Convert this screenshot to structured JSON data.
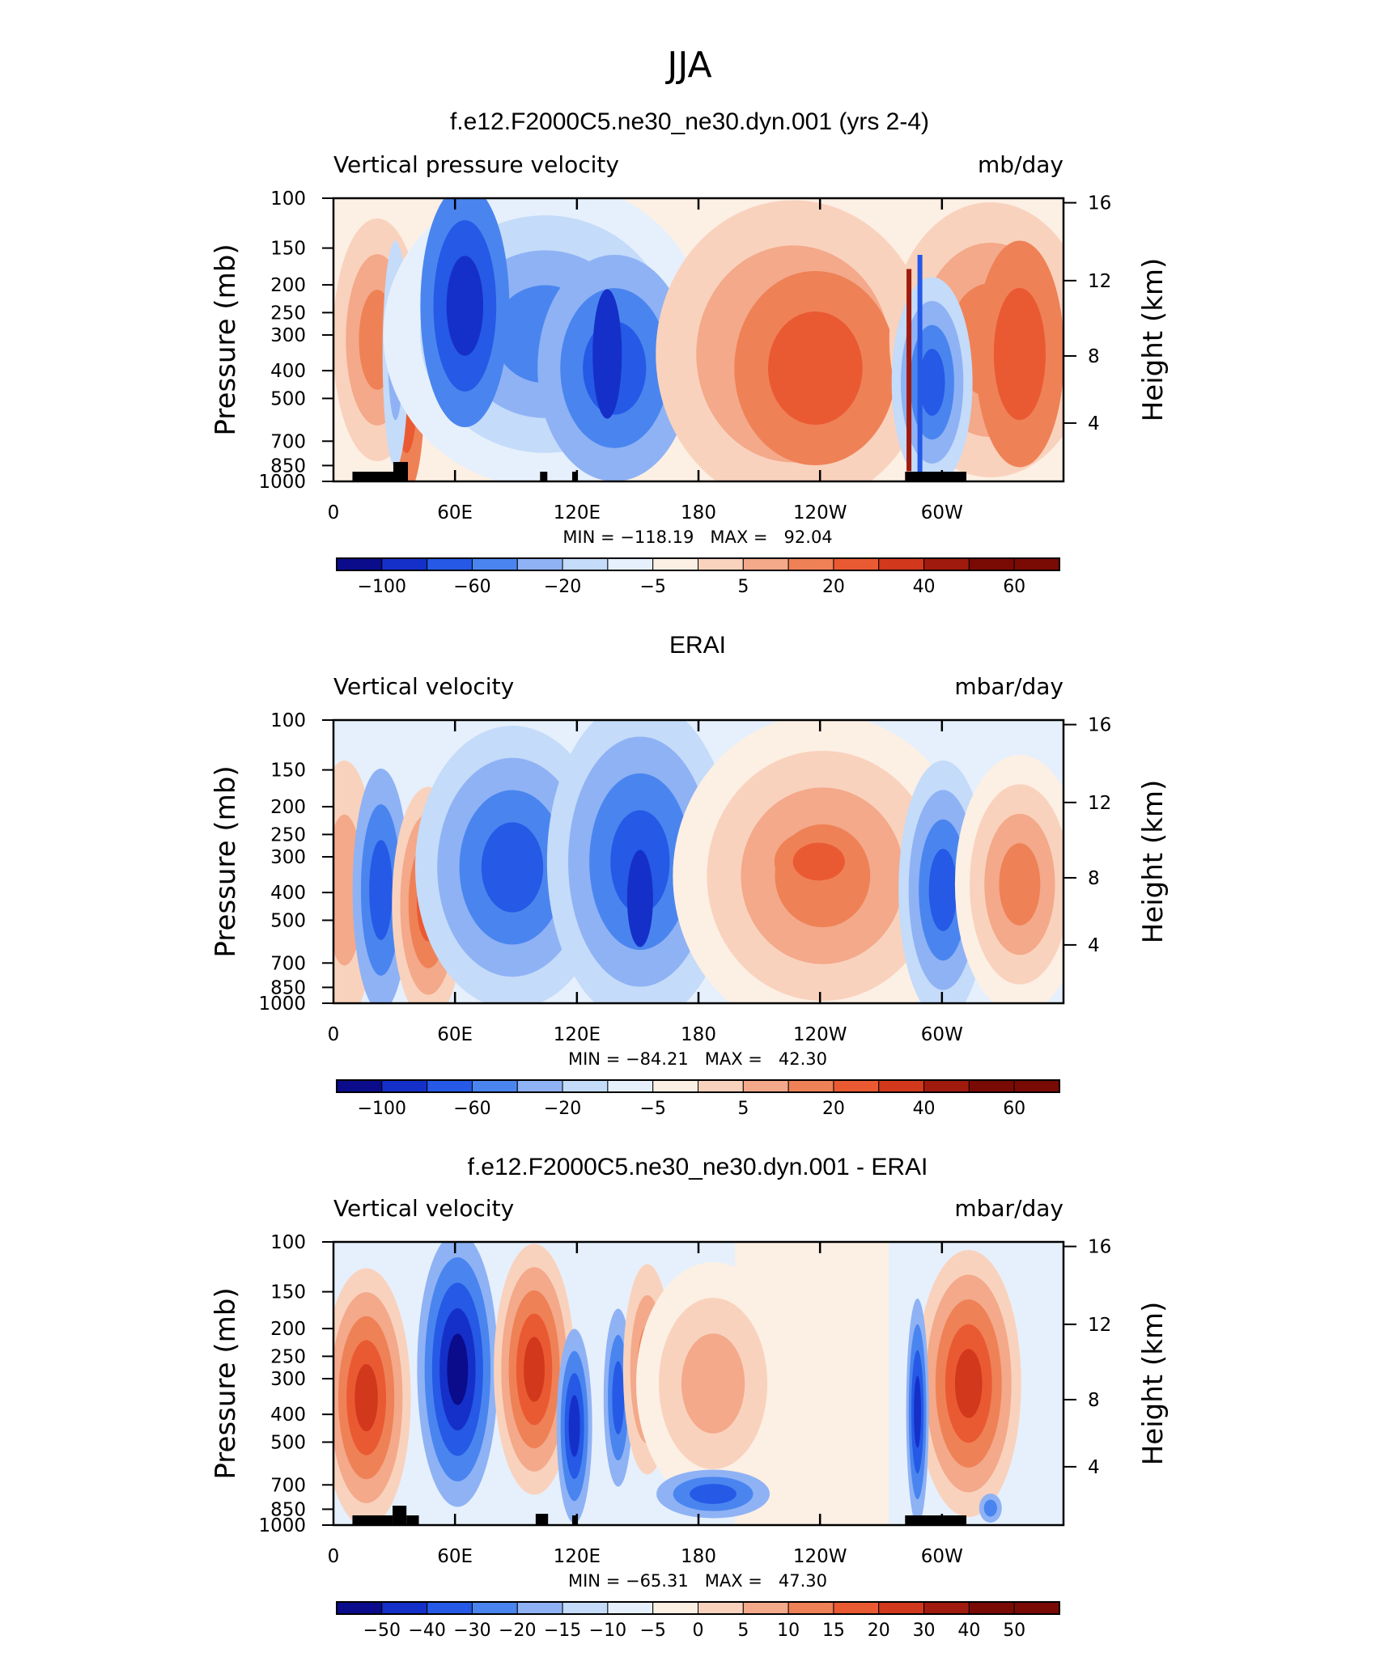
{
  "figure": {
    "title": "JJA"
  },
  "chart_data": [
    {
      "type": "heatmap",
      "title": "f.e12.F2000C5.ne30_ne30.dyn.001 (yrs 2-4)",
      "left_title": "Vertical pressure velocity",
      "units": "mb/day",
      "ylabel": "Pressure (mb)",
      "y2label": "Height (km)",
      "x_ticks": [
        "0",
        "60E",
        "120E",
        "180",
        "120W",
        "60W"
      ],
      "y_ticks": [
        "100",
        "150",
        "200",
        "250",
        "300",
        "400",
        "500",
        "700",
        "850",
        "1000"
      ],
      "y2_ticks": [
        "16",
        "12",
        "8",
        "4"
      ],
      "stats": "MIN = −118.19   MAX =   92.04",
      "min": -118.19,
      "max": 92.04,
      "colorbar_labels": [
        "−100",
        "−60",
        "−20",
        "−5",
        "5",
        "20",
        "40",
        "60"
      ]
    },
    {
      "type": "heatmap",
      "title": "ERAI",
      "left_title": "Vertical velocity",
      "units": "mbar/day",
      "ylabel": "Pressure (mb)",
      "y2label": "Height (km)",
      "x_ticks": [
        "0",
        "60E",
        "120E",
        "180",
        "120W",
        "60W"
      ],
      "y_ticks": [
        "100",
        "150",
        "200",
        "250",
        "300",
        "400",
        "500",
        "700",
        "850",
        "1000"
      ],
      "y2_ticks": [
        "16",
        "12",
        "8",
        "4"
      ],
      "stats": "MIN = −84.21   MAX =   42.30",
      "min": -84.21,
      "max": 42.3,
      "colorbar_labels": [
        "−100",
        "−60",
        "−20",
        "−5",
        "5",
        "20",
        "40",
        "60"
      ]
    },
    {
      "type": "heatmap",
      "title": "f.e12.F2000C5.ne30_ne30.dyn.001 - ERAI",
      "left_title": "Vertical velocity",
      "units": "mbar/day",
      "ylabel": "Pressure (mb)",
      "y2label": "Height (km)",
      "x_ticks": [
        "0",
        "60E",
        "120E",
        "180",
        "120W",
        "60W"
      ],
      "y_ticks": [
        "100",
        "150",
        "200",
        "250",
        "300",
        "400",
        "500",
        "700",
        "850",
        "1000"
      ],
      "y2_ticks": [
        "16",
        "12",
        "8",
        "4"
      ],
      "stats": "MIN = −65.31   MAX =   47.30",
      "min": -65.31,
      "max": 47.3,
      "colorbar_labels": [
        "−50",
        "−40",
        "−30",
        "−20",
        "−15",
        "−10",
        "−5",
        "0",
        "5",
        "10",
        "15",
        "20",
        "30",
        "40",
        "50"
      ]
    }
  ],
  "colors": {
    "palette": [
      "#0a0c8c",
      "#1530c8",
      "#2559e6",
      "#4a85ef",
      "#8fb2f5",
      "#c4dbf9",
      "#e6f0fc",
      "#fcefe4",
      "#f9d2bd",
      "#f3a98a",
      "#ef8157",
      "#ea5a32",
      "#d2381c",
      "#a01a0e",
      "#7a0a04"
    ]
  }
}
